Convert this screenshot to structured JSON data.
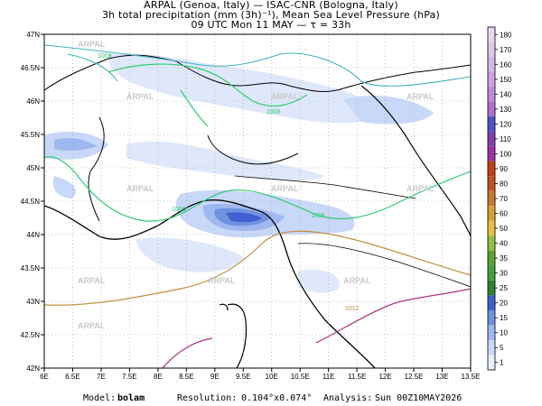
{
  "header": {
    "line1": "ARPAL (Genoa, Italy)  —  ISAC-CNR (Bologna, Italy)",
    "line2": "3h total precipitation (mm (3h)⁻¹), Mean Sea Level Pressure (hPa)",
    "line3": "09 UTC Mon 11 MAY  —  τ = 33h"
  },
  "map": {
    "lat_range": [
      42,
      47
    ],
    "lon_range": [
      6,
      13.5
    ],
    "lat_ticks": [
      "42N",
      "42.5N",
      "43N",
      "43.5N",
      "44N",
      "44.5N",
      "45N",
      "45.5N",
      "46N",
      "46.5N",
      "47N"
    ],
    "lon_ticks": [
      "6E",
      "6.5E",
      "7E",
      "7.5E",
      "8E",
      "8.5E",
      "9E",
      "9.5E",
      "10E",
      "10.5E",
      "11E",
      "11.5E",
      "12E",
      "12.5E",
      "13E",
      "13.5E"
    ],
    "watermark": "ARPAL",
    "isobar_labels": [
      "1008",
      "1008",
      "1008",
      "1008",
      "1012"
    ],
    "isobar_colors": {
      "1008": "#2ecc71",
      "1012": "#c09040",
      "1016": "#b03080",
      "1004": "#40b0c0"
    }
  },
  "colorbar": {
    "labels": [
      "180",
      "170",
      "160",
      "150",
      "140",
      "130",
      "120",
      "110",
      "100",
      "90",
      "80",
      "70",
      "60",
      "50",
      "40",
      "35",
      "30",
      "25",
      "20",
      "15",
      "10",
      "5",
      "1"
    ],
    "colors": [
      "#e8d8f0",
      "#e0c8ec",
      "#d8b8e8",
      "#d0a0e0",
      "#c088d8",
      "#b070d0",
      "#5050c8",
      "#8040b0",
      "#a030a0",
      "#c04010",
      "#c05020",
      "#c87830",
      "#d8a030",
      "#e8c040",
      "#90c040",
      "#60a030",
      "#40a040",
      "#308030",
      "#4060d0",
      "#7090e0",
      "#a0b8f0",
      "#c8d8f8",
      "#e8eef8"
    ]
  },
  "footer": {
    "model_label": "Model:",
    "model_value": "bolam",
    "resolution_label": "Resolution:",
    "resolution_value": "0.104°x0.074°",
    "analysis_label": "Analysis:",
    "analysis_value": "Sun 00Z10MAY2026"
  }
}
